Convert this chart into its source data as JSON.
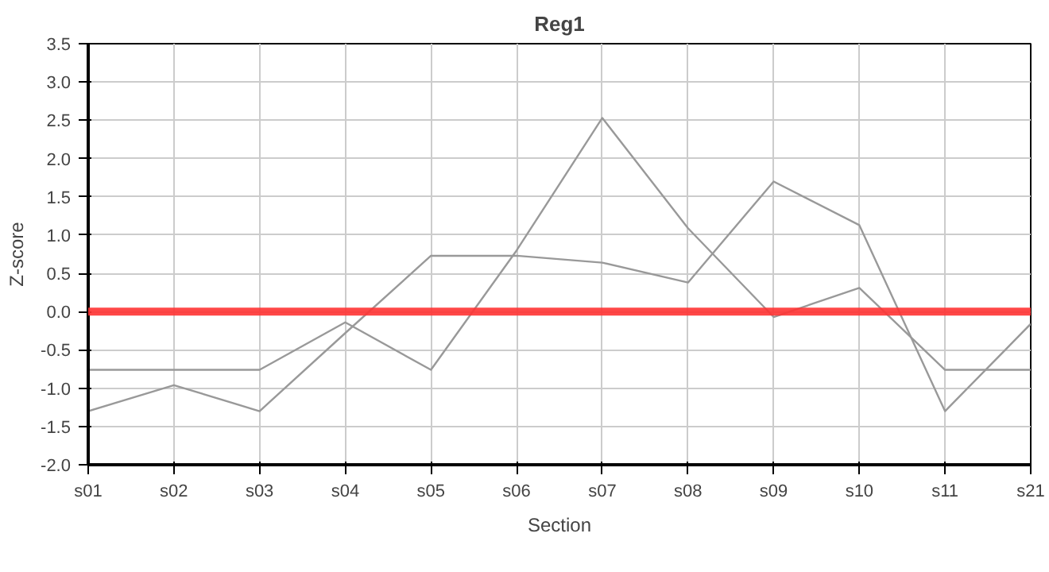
{
  "chart_data": {
    "type": "line",
    "title": "Reg1",
    "xlabel": "Section",
    "ylabel": "Z-score",
    "categories": [
      "s01",
      "s02",
      "s03",
      "s04",
      "s05",
      "s06",
      "s07",
      "s08",
      "s09",
      "s10",
      "s11",
      "s21"
    ],
    "series": [
      {
        "color": "#999999",
        "values": [
          -0.76,
          -0.76,
          -0.76,
          -0.14,
          -0.76,
          0.8,
          2.53,
          1.09,
          -0.07,
          0.31,
          -0.76,
          -0.76
        ]
      },
      {
        "color": "#999999",
        "values": [
          -1.3,
          -0.96,
          -1.3,
          -0.28,
          0.73,
          0.73,
          0.64,
          0.38,
          1.7,
          1.13,
          -1.3,
          -0.16
        ]
      }
    ],
    "ylim": [
      -2.0,
      3.5
    ],
    "yticks": [
      {
        "value": -2.0,
        "label": "-2.0"
      },
      {
        "value": -1.5,
        "label": "-1.5"
      },
      {
        "value": -1.0,
        "label": "-1.0"
      },
      {
        "value": -0.5,
        "label": "-0.5"
      },
      {
        "value": 0.0,
        "label": "0.0"
      },
      {
        "value": 0.5,
        "label": "0.5"
      },
      {
        "value": 1.0,
        "label": "1.0"
      },
      {
        "value": 1.5,
        "label": "1.5"
      },
      {
        "value": 2.0,
        "label": "2.0"
      },
      {
        "value": 2.5,
        "label": "2.5"
      },
      {
        "value": 3.0,
        "label": "3.0"
      },
      {
        "value": 3.5,
        "label": "3.5"
      }
    ],
    "ref_lines": [
      {
        "axis": "y",
        "value": 0.0,
        "color": "#ff3333"
      }
    ],
    "grid": true,
    "marker": "none",
    "line_style": "solid"
  }
}
